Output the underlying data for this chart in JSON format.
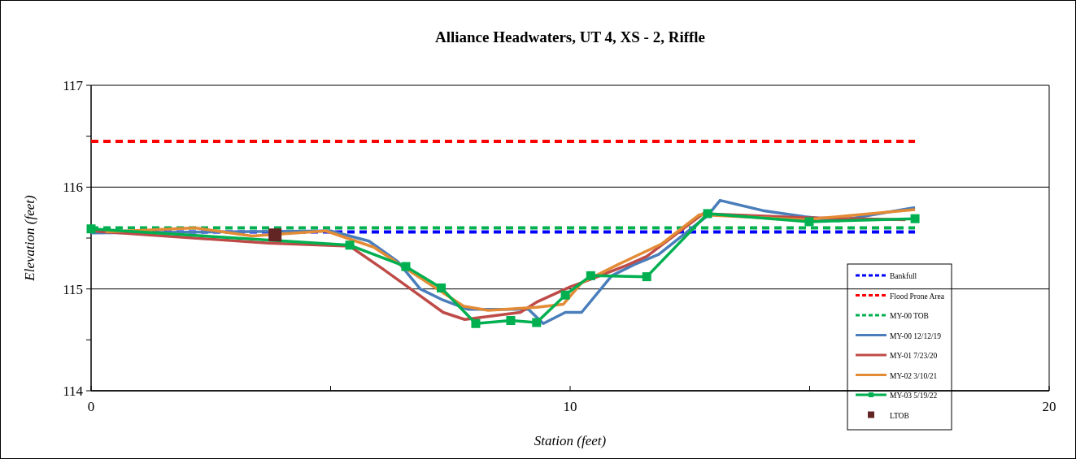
{
  "chart_data": {
    "type": "line",
    "title": "Alliance Headwaters, UT 4, XS - 2, Riffle",
    "xlabel": "Station (feet)",
    "ylabel": "Elevation (feet)",
    "xlim": [
      0,
      20
    ],
    "xticks": [
      0,
      {
        "value": 5,
        "label": null
      },
      10,
      {
        "value": 15,
        "label": null
      },
      20
    ],
    "ylim": [
      114,
      117
    ],
    "yticks": [
      114,
      {
        "value": 114.5,
        "label": null
      },
      115,
      {
        "value": 115.5,
        "label": null
      },
      116,
      {
        "value": 116.5,
        "label": null
      },
      117
    ],
    "grid": "y",
    "legend": "bottom right",
    "line_style": "solid",
    "marker": "none",
    "series": [
      {
        "name": "Bankfull",
        "color": "#0000ff",
        "line_style": "dashed",
        "x": [
          0,
          17.2
        ],
        "values": [
          115.56,
          115.56
        ]
      },
      {
        "name": "Flood Prone Area",
        "color": "#ff0000",
        "line_style": "dashed",
        "x": [
          0,
          17.2
        ],
        "values": [
          116.45,
          116.45
        ]
      },
      {
        "name": "MY-00 TOB",
        "color": "#00b050",
        "line_style": "dashed",
        "x": [
          0,
          17.2
        ],
        "values": [
          115.6,
          115.6
        ]
      },
      {
        "name": "MY-00 12/12/19",
        "color": "#4a7ebb",
        "x": [
          0,
          5.0,
          5.8,
          6.4,
          6.87,
          7.35,
          7.86,
          9.13,
          9.44,
          9.9,
          10.24,
          10.87,
          11.34,
          11.85,
          12.87,
          13.13,
          14.02,
          14.9,
          15.6,
          17.2
        ],
        "values": [
          115.55,
          115.57,
          115.47,
          115.27,
          115.0,
          114.89,
          114.8,
          114.8,
          114.66,
          114.77,
          114.77,
          115.13,
          115.24,
          115.34,
          115.72,
          115.87,
          115.77,
          115.71,
          115.67,
          115.8
        ]
      },
      {
        "name": "MY-01 7/23/20",
        "color": "#be4b48",
        "x": [
          0,
          3.7,
          5.4,
          6.08,
          6.67,
          7.35,
          7.8,
          8.96,
          9.3,
          10.0,
          10.46,
          11.17,
          11.6,
          12.78,
          14.9,
          17.0
        ],
        "values": [
          115.57,
          115.45,
          115.42,
          115.2,
          115.0,
          114.77,
          114.7,
          114.77,
          114.87,
          115.02,
          115.1,
          115.23,
          115.32,
          115.74,
          115.7,
          115.68
        ]
      },
      {
        "name": "MY-02 3/10/21",
        "color": "#e38b35",
        "x": [
          0.3,
          2.17,
          3.36,
          4.9,
          5.9,
          6.93,
          7.78,
          8.29,
          9.3,
          9.86,
          10.24,
          11.0,
          11.9,
          12.7,
          14.9,
          17.2
        ],
        "values": [
          115.56,
          115.6,
          115.52,
          115.57,
          115.41,
          115.09,
          114.83,
          114.79,
          114.82,
          114.85,
          115.06,
          115.24,
          115.44,
          115.73,
          115.68,
          115.78
        ]
      },
      {
        "name": "MY-03 5/19/22",
        "color": "#00b050",
        "marker": "square",
        "x": [
          0,
          5.4,
          6.57,
          7.31,
          8.03,
          8.76,
          9.3,
          9.9,
          10.43,
          11.6,
          12.87,
          14.99,
          17.2
        ],
        "values": [
          115.59,
          115.43,
          115.22,
          115.01,
          114.66,
          114.69,
          114.67,
          114.94,
          115.13,
          115.12,
          115.74,
          115.66,
          115.69
        ]
      },
      {
        "name": "LTOB",
        "type": "scatter",
        "color": "#632523",
        "marker": "square",
        "x": [
          3.84
        ],
        "values": [
          115.53
        ]
      }
    ]
  }
}
